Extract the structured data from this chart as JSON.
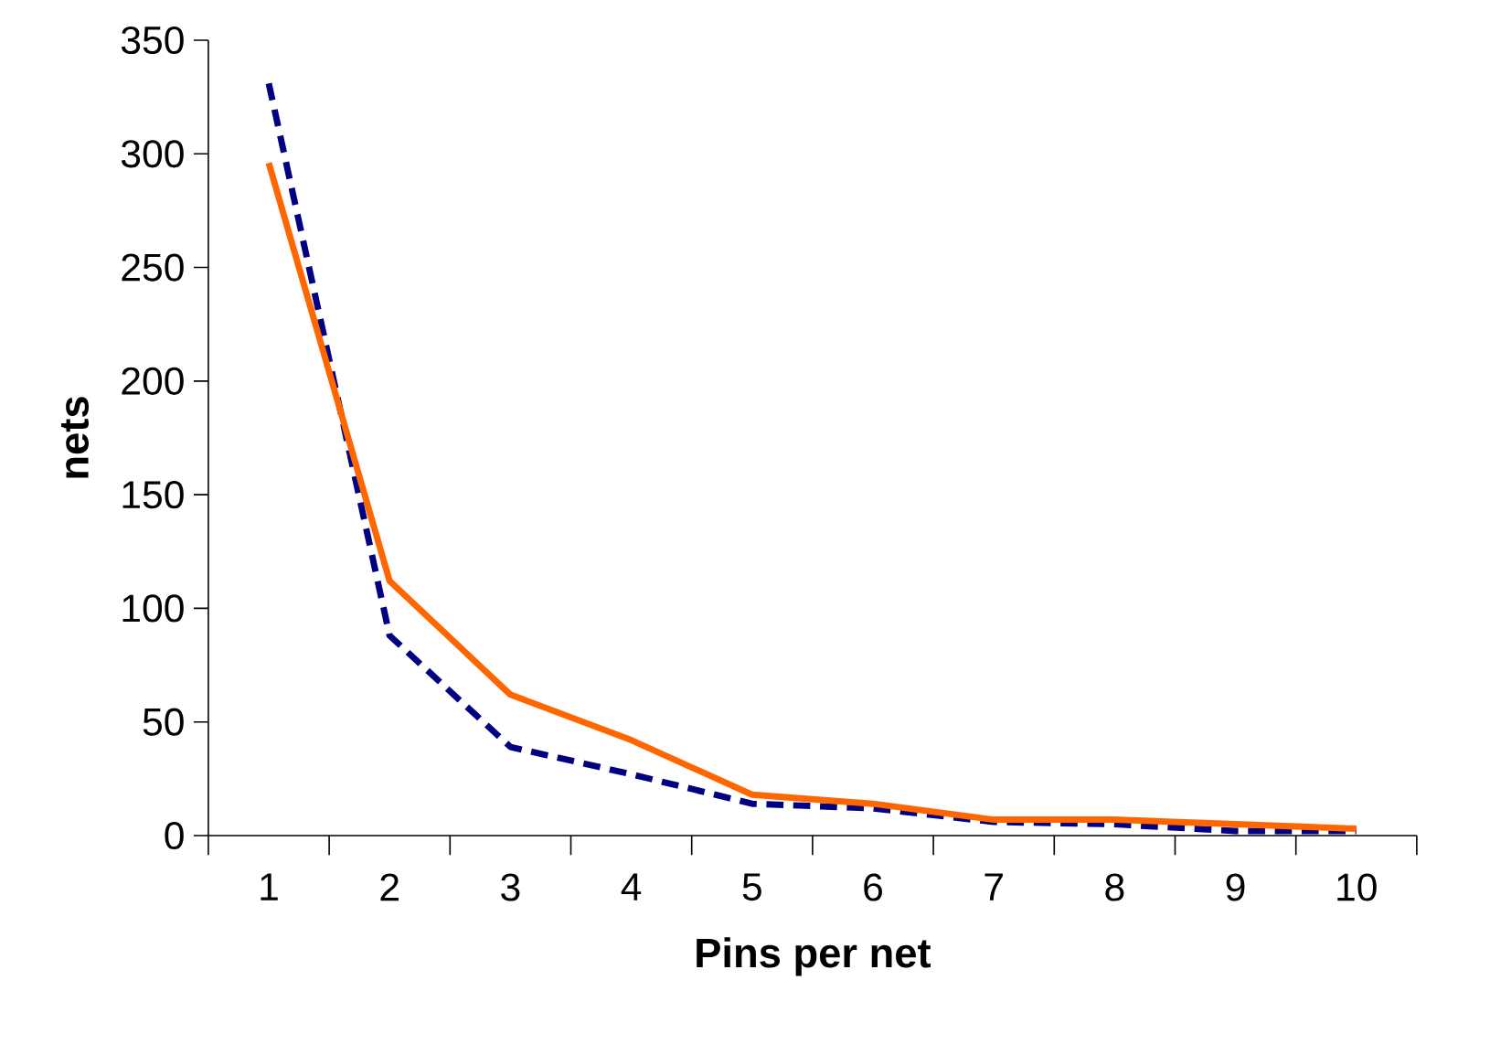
{
  "chart_data": {
    "type": "line",
    "xlabel": "Pins per net",
    "ylabel": "nets",
    "categories": [
      "1",
      "2",
      "3",
      "4",
      "5",
      "6",
      "7",
      "8",
      "9",
      "10"
    ],
    "series": [
      {
        "color": "#000080",
        "line_style": "dashed",
        "values": [
          331,
          88,
          39,
          27,
          14,
          12,
          6,
          5,
          2,
          2
        ]
      },
      {
        "color": "#ff6600",
        "line_style": "solid",
        "values": [
          296,
          112,
          62,
          42,
          18,
          14,
          7,
          7,
          5,
          3
        ]
      }
    ],
    "ylim": [
      0,
      350
    ],
    "yticks": [
      0,
      50,
      100,
      150,
      200,
      250,
      300,
      350
    ],
    "grid": false,
    "marker": "none"
  }
}
